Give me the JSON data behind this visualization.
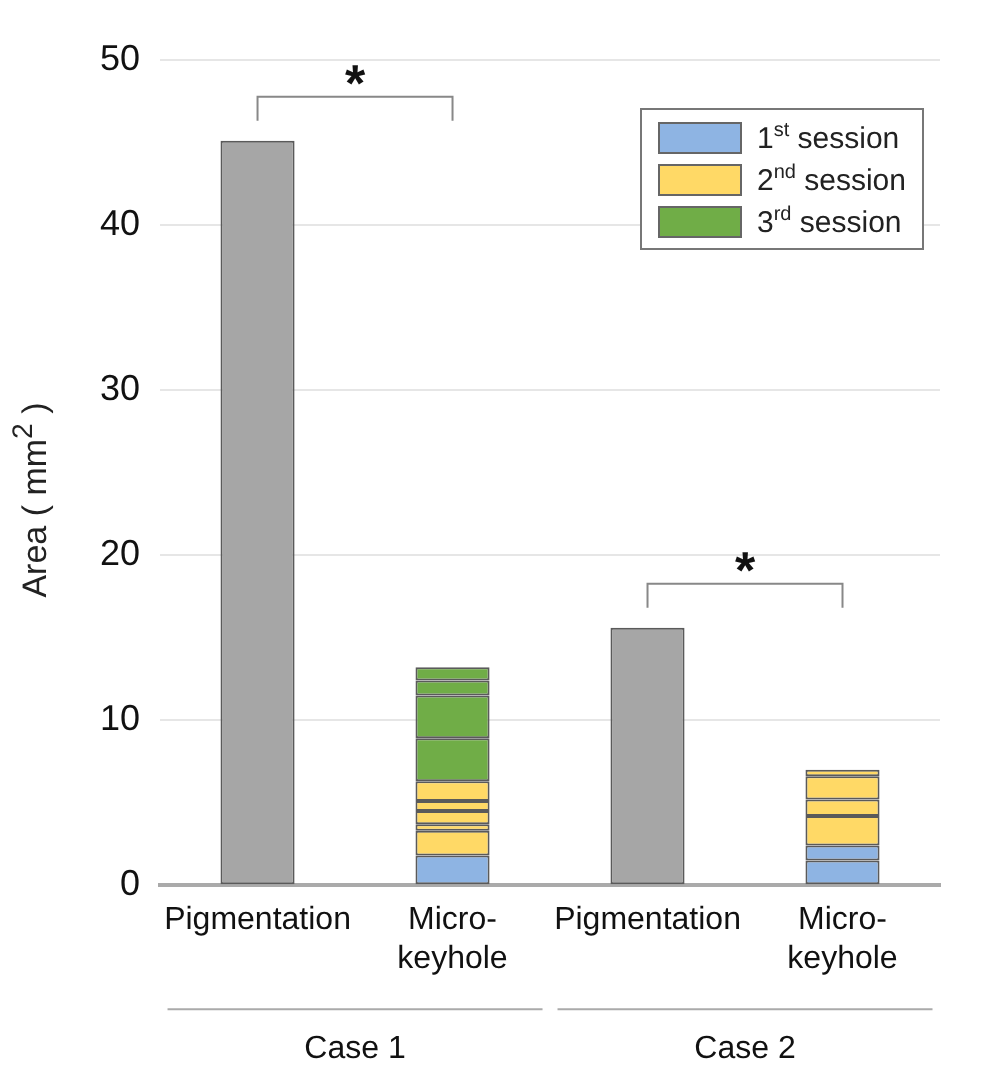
{
  "chart_data": {
    "type": "bar",
    "stacked": true,
    "ylabel": "Area ( mm$^{2}$ )",
    "categories": [
      "Pigmentation",
      "Micro-keyhole",
      "Pigmentation",
      "Micro-keyhole"
    ],
    "series": [
      {
        "color": "#a6a6a6",
        "values": [
          45.1,
          null,
          15.6,
          null
        ]
      },
      {
        "name": "1$^{st}$ session",
        "color": "#8eb4e3",
        "values": [
          null,
          1.8,
          null,
          1.5
        ]
      },
      {
        "color": "#8eb4e3",
        "values": [
          null,
          null,
          null,
          0.9
        ]
      },
      {
        "name": "2$^{nd}$ session",
        "color": "#ffd966",
        "values": [
          null,
          1.5,
          null,
          1.8
        ]
      },
      {
        "color": "#ffd966",
        "values": [
          null,
          0.4,
          null,
          1.0
        ]
      },
      {
        "color": "#ffd966",
        "values": [
          null,
          0.8,
          null,
          1.4
        ]
      },
      {
        "color": "#ffd966",
        "values": [
          null,
          0.6,
          null,
          0.4
        ]
      },
      {
        "color": "#ffd966",
        "values": [
          null,
          1.2,
          null,
          null
        ]
      },
      {
        "name": "3$^{rd}$ session",
        "color": "#70ad47",
        "values": [
          null,
          2.6,
          null,
          null
        ]
      },
      {
        "color": "#70ad47",
        "values": [
          null,
          2.6,
          null,
          null
        ]
      },
      {
        "color": "#70ad47",
        "values": [
          null,
          0.9,
          null,
          null
        ]
      },
      {
        "color": "#70ad47",
        "values": [
          null,
          0.8,
          null,
          null
        ]
      }
    ],
    "ylim": [
      0,
      50
    ],
    "yticks": [
      0,
      10,
      20,
      30,
      40,
      50
    ],
    "grid": "y",
    "legend": "top right",
    "annotations": [
      "*",
      "*",
      "Case 1",
      "Case 2"
    ]
  }
}
